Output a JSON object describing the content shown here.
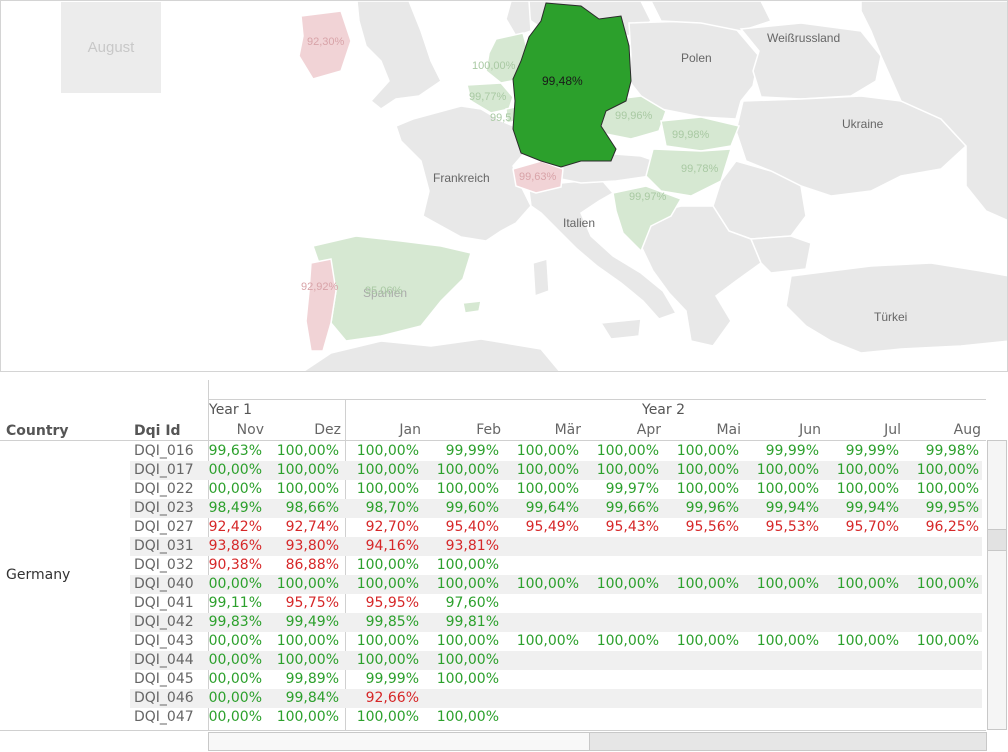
{
  "map": {
    "month": "August",
    "countries": {
      "polen": "Polen",
      "weissrussland": "Weißrussland",
      "ukraine": "Ukraine",
      "frankreich": "Frankreich",
      "italien": "Italien",
      "tuerkei": "Türkei",
      "spanien": "Spanien"
    },
    "values": {
      "germany": "99,48%",
      "ireland": "92,30%",
      "netherlands": "100,00%",
      "belgium": "99,77%",
      "luxembourg": "99,5",
      "czechia": "99,96%",
      "slovakia": "99,98%",
      "hungary": "99,78%",
      "switzerland": "99,63%",
      "croatia": "99,97%",
      "portugal": "92,92%",
      "spain": "95,06%"
    },
    "colors": {
      "germany": "#2ca02c",
      "green_faded": "#d6e8d2",
      "red_faded": "#f1d3d6",
      "grey": "#e8e8e8"
    }
  },
  "table": {
    "headers": {
      "country": "Country",
      "dqi_id": "Dqi Id",
      "year1": "Year 1",
      "year2": "Year 2"
    },
    "months": [
      "Nov",
      "Dez",
      "Jan",
      "Feb",
      "Mär",
      "Apr",
      "Mai",
      "Jun",
      "Jul",
      "Aug"
    ],
    "country": "Germany",
    "rows": [
      {
        "id": "DQI_016",
        "v": [
          "99,63%",
          "100,00%",
          "100,00%",
          "99,99%",
          "100,00%",
          "100,00%",
          "100,00%",
          "99,99%",
          "99,99%",
          "99,98%"
        ],
        "c": [
          "g",
          "g",
          "g",
          "g",
          "g",
          "g",
          "g",
          "g",
          "g",
          "g"
        ]
      },
      {
        "id": "DQI_017",
        "v": [
          "00,00%",
          "100,00%",
          "100,00%",
          "100,00%",
          "100,00%",
          "100,00%",
          "100,00%",
          "100,00%",
          "100,00%",
          "100,00%"
        ],
        "c": [
          "g",
          "g",
          "g",
          "g",
          "g",
          "g",
          "g",
          "g",
          "g",
          "g"
        ]
      },
      {
        "id": "DQI_022",
        "v": [
          "00,00%",
          "100,00%",
          "100,00%",
          "100,00%",
          "100,00%",
          "99,97%",
          "100,00%",
          "100,00%",
          "100,00%",
          "100,00%"
        ],
        "c": [
          "g",
          "g",
          "g",
          "g",
          "g",
          "g",
          "g",
          "g",
          "g",
          "g"
        ]
      },
      {
        "id": "DQI_023",
        "v": [
          "98,49%",
          "98,66%",
          "98,70%",
          "99,60%",
          "99,64%",
          "99,66%",
          "99,96%",
          "99,94%",
          "99,94%",
          "99,95%"
        ],
        "c": [
          "g",
          "g",
          "g",
          "g",
          "g",
          "g",
          "g",
          "g",
          "g",
          "g"
        ]
      },
      {
        "id": "DQI_027",
        "v": [
          "92,42%",
          "92,74%",
          "92,70%",
          "95,40%",
          "95,49%",
          "95,43%",
          "95,56%",
          "95,53%",
          "95,70%",
          "96,25%"
        ],
        "c": [
          "r",
          "r",
          "r",
          "r",
          "r",
          "r",
          "r",
          "r",
          "r",
          "r"
        ]
      },
      {
        "id": "DQI_031",
        "v": [
          "93,86%",
          "93,80%",
          "94,16%",
          "93,81%",
          "",
          "",
          "",
          "",
          "",
          ""
        ],
        "c": [
          "r",
          "r",
          "r",
          "r",
          "",
          "",
          "",
          "",
          "",
          ""
        ]
      },
      {
        "id": "DQI_032",
        "v": [
          "90,38%",
          "86,88%",
          "100,00%",
          "100,00%",
          "",
          "",
          "",
          "",
          "",
          ""
        ],
        "c": [
          "r",
          "r",
          "g",
          "g",
          "",
          "",
          "",
          "",
          "",
          ""
        ]
      },
      {
        "id": "DQI_040",
        "v": [
          "00,00%",
          "100,00%",
          "100,00%",
          "100,00%",
          "100,00%",
          "100,00%",
          "100,00%",
          "100,00%",
          "100,00%",
          "100,00%"
        ],
        "c": [
          "g",
          "g",
          "g",
          "g",
          "g",
          "g",
          "g",
          "g",
          "g",
          "g"
        ]
      },
      {
        "id": "DQI_041",
        "v": [
          "99,11%",
          "95,75%",
          "95,95%",
          "97,60%",
          "",
          "",
          "",
          "",
          "",
          ""
        ],
        "c": [
          "g",
          "r",
          "r",
          "g",
          "",
          "",
          "",
          "",
          "",
          ""
        ]
      },
      {
        "id": "DQI_042",
        "v": [
          "99,83%",
          "99,49%",
          "99,85%",
          "99,81%",
          "",
          "",
          "",
          "",
          "",
          ""
        ],
        "c": [
          "g",
          "g",
          "g",
          "g",
          "",
          "",
          "",
          "",
          "",
          ""
        ]
      },
      {
        "id": "DQI_043",
        "v": [
          "00,00%",
          "100,00%",
          "100,00%",
          "100,00%",
          "100,00%",
          "100,00%",
          "100,00%",
          "100,00%",
          "100,00%",
          "100,00%"
        ],
        "c": [
          "g",
          "g",
          "g",
          "g",
          "g",
          "g",
          "g",
          "g",
          "g",
          "g"
        ]
      },
      {
        "id": "DQI_044",
        "v": [
          "00,00%",
          "100,00%",
          "100,00%",
          "100,00%",
          "",
          "",
          "",
          "",
          "",
          ""
        ],
        "c": [
          "g",
          "g",
          "g",
          "g",
          "",
          "",
          "",
          "",
          "",
          ""
        ]
      },
      {
        "id": "DQI_045",
        "v": [
          "00,00%",
          "99,89%",
          "99,99%",
          "100,00%",
          "",
          "",
          "",
          "",
          "",
          ""
        ],
        "c": [
          "g",
          "g",
          "g",
          "g",
          "",
          "",
          "",
          "",
          "",
          ""
        ]
      },
      {
        "id": "DQI_046",
        "v": [
          "00,00%",
          "99,84%",
          "92,66%",
          "",
          "",
          "",
          "",
          "",
          "",
          ""
        ],
        "c": [
          "g",
          "g",
          "r",
          "",
          "",
          "",
          "",
          "",
          "",
          ""
        ]
      },
      {
        "id": "DQI_047",
        "v": [
          "00,00%",
          "100,00%",
          "100,00%",
          "100,00%",
          "",
          "",
          "",
          "",
          "",
          ""
        ],
        "c": [
          "g",
          "g",
          "g",
          "g",
          "",
          "",
          "",
          "",
          "",
          ""
        ]
      }
    ]
  }
}
